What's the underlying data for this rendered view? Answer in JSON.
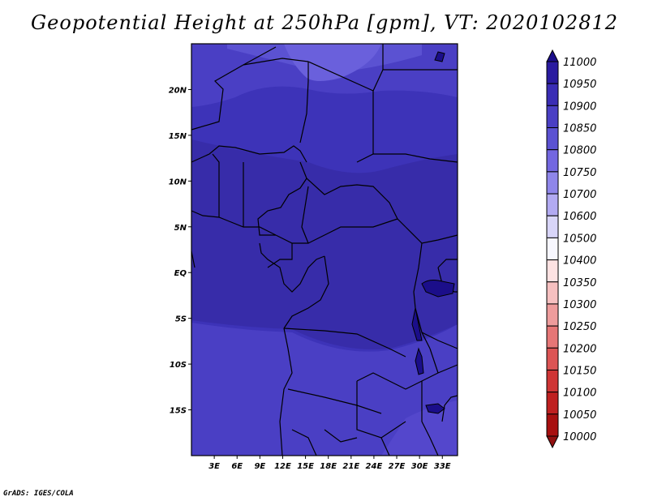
{
  "title": "Geopotential Height at 250hPa [gpm], VT: 2020102812",
  "credit": "GrADS: IGES/COLA",
  "map": {
    "lon_range": [
      0,
      35
    ],
    "lat_range": [
      -20,
      25
    ],
    "x_ticks": [
      "3E",
      "6E",
      "9E",
      "12E",
      "15E",
      "18E",
      "21E",
      "24E",
      "27E",
      "30E",
      "33E"
    ],
    "y_ticks": [
      "20N",
      "15N",
      "10N",
      "5N",
      "EQ",
      "5S",
      "10S",
      "15S"
    ]
  },
  "colorbar": {
    "levels": [
      "11000",
      "10950",
      "10900",
      "10850",
      "10800",
      "10750",
      "10700",
      "10600",
      "10500",
      "10400",
      "10350",
      "10300",
      "10250",
      "10200",
      "10150",
      "10100",
      "10050",
      "10000"
    ],
    "colors": [
      "#1b0e8a",
      "#2a1ba0",
      "#3a2db5",
      "#4a3fc4",
      "#5b52d2",
      "#7367e0",
      "#8f86ea",
      "#b2aaf2",
      "#d8d5f8",
      "#f7f7ff",
      "#fde2e2",
      "#f6c0c0",
      "#ee9c9c",
      "#e67676",
      "#dc5454",
      "#cf3535",
      "#bf2020",
      "#a81010",
      "#921010"
    ]
  }
}
